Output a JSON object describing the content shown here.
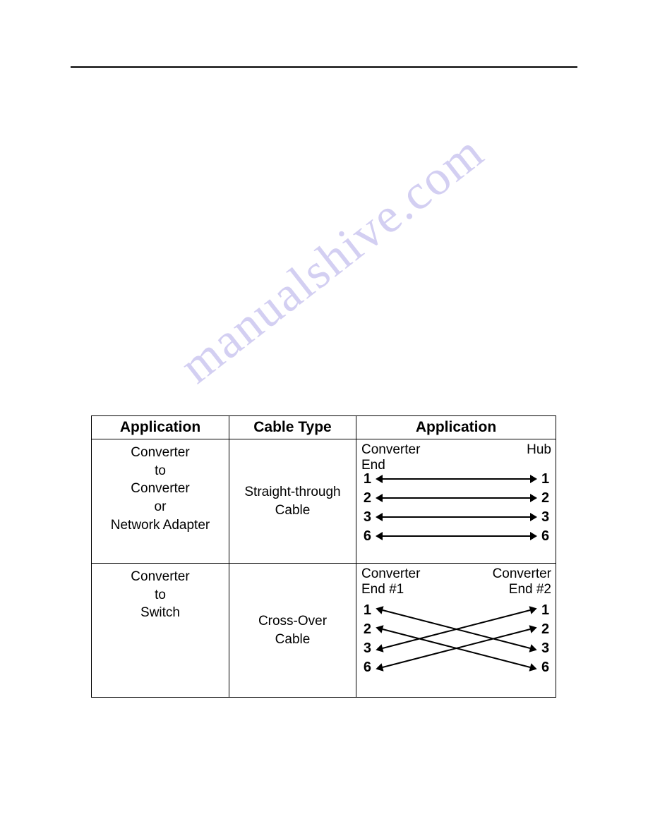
{
  "watermark_text": "manualshive.com",
  "watermark_color": "#b0a8e8",
  "hr_color": "#000000",
  "table": {
    "headers": {
      "c1": "Application",
      "c2": "Cable Type",
      "c3": "Application"
    },
    "fontsize_header": 21,
    "fontsize_cell": 19,
    "border_color": "#000000",
    "row1": {
      "application": "Converter\nto\nConverter\nor\nNetwork Adapter",
      "cable_type": "Straight-through\nCable",
      "diagram": {
        "left_label": "Converter",
        "right_label": "Hub",
        "left_sub": "End",
        "pins_left": [
          "1",
          "2",
          "3",
          "6"
        ],
        "pins_right": [
          "1",
          "2",
          "3",
          "6"
        ],
        "mapping": [
          [
            0,
            0
          ],
          [
            1,
            1
          ],
          [
            2,
            2
          ],
          [
            3,
            3
          ]
        ],
        "arrow_dir": "both",
        "line_color": "#000000",
        "line_width": 2
      }
    },
    "row2": {
      "application": "Converter\nto\nSwitch",
      "cable_type": "Cross-Over\nCable",
      "diagram": {
        "left_label": "Converter",
        "right_label": "Converter",
        "left_sub": "End #1",
        "right_sub": "End #2",
        "pins_left": [
          "1",
          "2",
          "3",
          "6"
        ],
        "pins_right": [
          "1",
          "2",
          "3",
          "6"
        ],
        "mapping": [
          [
            0,
            2
          ],
          [
            1,
            3
          ],
          [
            2,
            0
          ],
          [
            3,
            1
          ]
        ],
        "arrow_dir": "both",
        "line_color": "#000000",
        "line_width": 2
      }
    }
  }
}
